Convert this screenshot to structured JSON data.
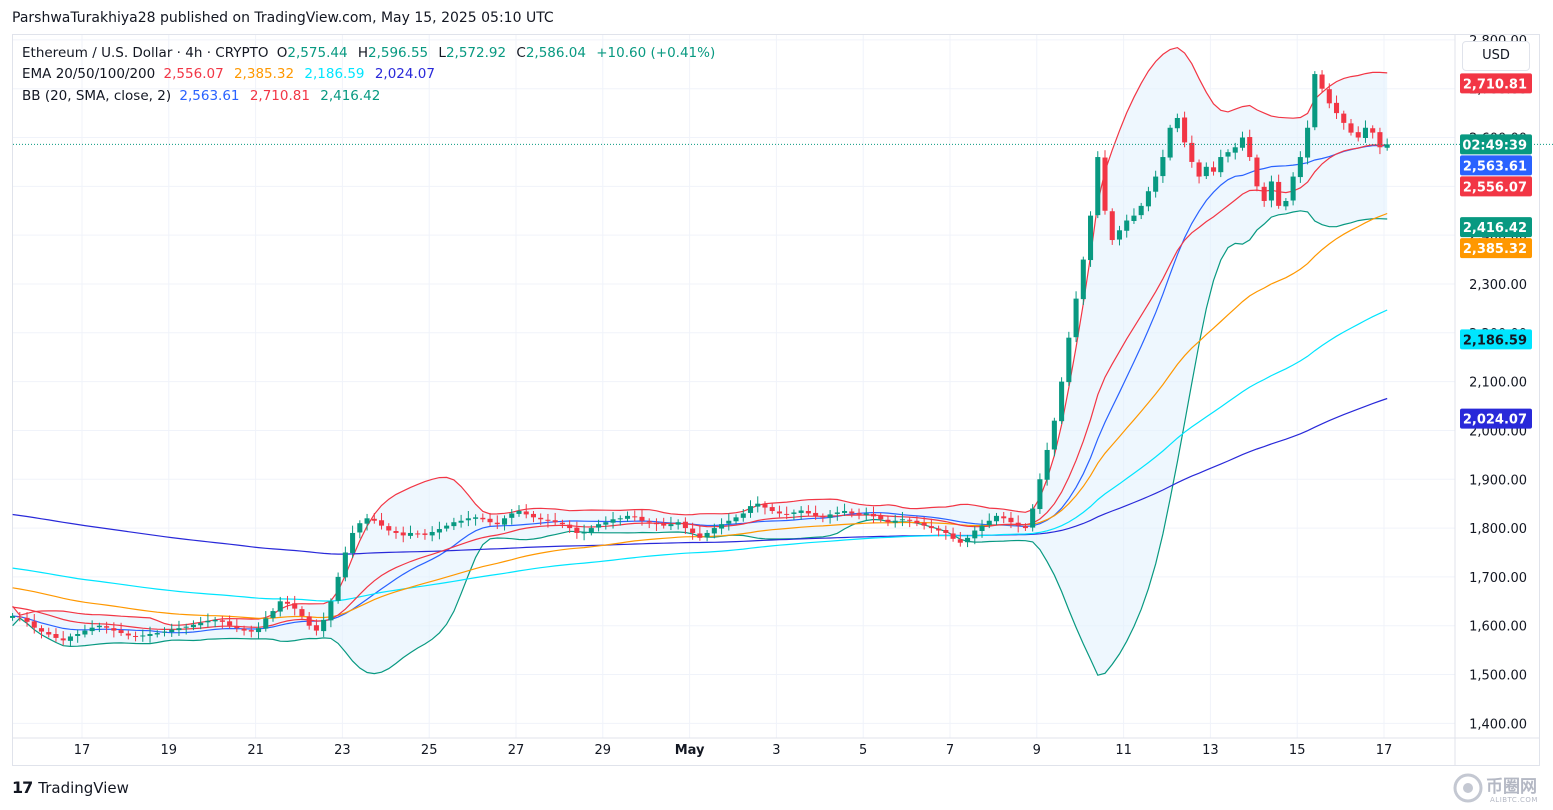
{
  "header": {
    "published": "ParshwaTurakhiya28 published on TradingView.com, May 15, 2025 05:10 UTC"
  },
  "legend": {
    "symbol": "Ethereum / U.S. Dollar · 4h · CRYPTO",
    "o_label": "O",
    "o": "2,575.44",
    "h_label": "H",
    "h": "2,596.55",
    "l_label": "L",
    "l": "2,572.92",
    "c_label": "C",
    "c": "2,586.04",
    "change": "+10.60 (+0.41%)",
    "ema_label": "EMA 20/50/100/200",
    "ema20": "2,556.07",
    "ema50": "2,385.32",
    "ema100": "2,186.59",
    "ema200": "2,024.07",
    "bb_label": "BB (20, SMA, close, 2)",
    "bb_mid": "2,563.61",
    "bb_upper": "2,710.81",
    "bb_lower": "2,416.42"
  },
  "currency_button": "USD",
  "footer": {
    "brand": "TradingView"
  },
  "watermark": {
    "text": "币圈网",
    "sub": "ALIBTC.COM"
  },
  "colors": {
    "up": "#089981",
    "down": "#f23645",
    "ema20": "#f23645",
    "ema50": "#ff9800",
    "ema100": "#00e5ff",
    "ema200": "#2929d9",
    "bb_mid": "#2962ff",
    "bb_upper": "#f23645",
    "bb_lower": "#089981",
    "bb_fill": "#e3f2fd"
  },
  "chart_data": {
    "type": "candlestick",
    "timeframe": "4h",
    "y_ticks": [
      "2,800.00",
      "2,700.00",
      "2,600.00",
      "2,500.00",
      "2,400.00",
      "2,300.00",
      "2,200.00",
      "2,100.00",
      "2,000.00",
      "1,900.00",
      "1,800.00",
      "1,700.00",
      "1,600.00",
      "1,500.00",
      "1,400.00"
    ],
    "y_tick_values": [
      2800,
      2700,
      2600,
      2500,
      2400,
      2300,
      2200,
      2100,
      2000,
      1900,
      1800,
      1700,
      1600,
      1500,
      1400
    ],
    "ylim": [
      1370,
      2810
    ],
    "x_ticks": [
      {
        "label": "17",
        "day": 17
      },
      {
        "label": "19",
        "day": 19
      },
      {
        "label": "21",
        "day": 21
      },
      {
        "label": "23",
        "day": 23
      },
      {
        "label": "25",
        "day": 25
      },
      {
        "label": "27",
        "day": 27
      },
      {
        "label": "29",
        "day": 29
      },
      {
        "label": "May",
        "day": 31
      },
      {
        "label": "3",
        "day": 33
      },
      {
        "label": "5",
        "day": 35
      },
      {
        "label": "7",
        "day": 37
      },
      {
        "label": "9",
        "day": 39
      },
      {
        "label": "11",
        "day": 41
      },
      {
        "label": "13",
        "day": 43
      },
      {
        "label": "15",
        "day": 45
      },
      {
        "label": "17",
        "day": 47
      }
    ],
    "price_labels": [
      {
        "text": "2,710.81",
        "value": 2710.81,
        "bg": "#f23645",
        "fg": "#ffffff"
      },
      {
        "text": "02:49:39",
        "value": 2586.04,
        "bg": "#089981",
        "fg": "#ffffff"
      },
      {
        "text": "2,563.61",
        "value": 2563.61,
        "bg": "#2962ff",
        "fg": "#ffffff"
      },
      {
        "text": "2,556.07",
        "value": 2556.07,
        "bg": "#f23645",
        "fg": "#ffffff"
      },
      {
        "text": "2,416.42",
        "value": 2416.42,
        "bg": "#089981",
        "fg": "#ffffff"
      },
      {
        "text": "2,385.32",
        "value": 2385.32,
        "bg": "#ff9800",
        "fg": "#ffffff"
      },
      {
        "text": "2,186.59",
        "value": 2186.59,
        "bg": "#00e5ff",
        "fg": "#131722"
      },
      {
        "text": "2,024.07",
        "value": 2024.07,
        "bg": "#2929d9",
        "fg": "#ffffff"
      }
    ],
    "last_price": 2586.04,
    "start_day": 15.4,
    "candle_days": 0.1667,
    "closes": [
      1620,
      1617,
      1608,
      1596,
      1588,
      1582,
      1575,
      1570,
      1578,
      1583,
      1590,
      1596,
      1600,
      1596,
      1590,
      1585,
      1580,
      1578,
      1580,
      1583,
      1585,
      1588,
      1592,
      1595,
      1598,
      1602,
      1606,
      1610,
      1612,
      1608,
      1600,
      1595,
      1590,
      1588,
      1595,
      1615,
      1630,
      1650,
      1645,
      1635,
      1620,
      1600,
      1590,
      1612,
      1650,
      1700,
      1750,
      1790,
      1810,
      1820,
      1815,
      1805,
      1795,
      1790,
      1785,
      1790,
      1788,
      1786,
      1792,
      1798,
      1805,
      1812,
      1815,
      1820,
      1822,
      1818,
      1812,
      1808,
      1820,
      1830,
      1835,
      1828,
      1822,
      1818,
      1815,
      1812,
      1808,
      1800,
      1790,
      1792,
      1800,
      1808,
      1812,
      1818,
      1820,
      1825,
      1822,
      1815,
      1812,
      1808,
      1805,
      1808,
      1812,
      1800,
      1790,
      1780,
      1790,
      1800,
      1808,
      1815,
      1822,
      1830,
      1845,
      1850,
      1842,
      1835,
      1830,
      1828,
      1832,
      1836,
      1830,
      1825,
      1822,
      1828,
      1832,
      1835,
      1830,
      1828,
      1830,
      1824,
      1818,
      1812,
      1815,
      1818,
      1816,
      1810,
      1805,
      1800,
      1795,
      1790,
      1778,
      1770,
      1780,
      1795,
      1805,
      1815,
      1825,
      1820,
      1812,
      1805,
      1800,
      1840,
      1900,
      1960,
      2020,
      2100,
      2190,
      2270,
      2350,
      2440,
      2560,
      2450,
      2390,
      2410,
      2430,
      2440,
      2460,
      2490,
      2520,
      2560,
      2620,
      2640,
      2590,
      2550,
      2520,
      2540,
      2530,
      2560,
      2570,
      2580,
      2600,
      2560,
      2500,
      2470,
      2510,
      2460,
      2470,
      2520,
      2560,
      2620,
      2730,
      2700,
      2670,
      2650,
      2630,
      2610,
      2600,
      2620,
      2610,
      2580,
      2586
    ]
  }
}
